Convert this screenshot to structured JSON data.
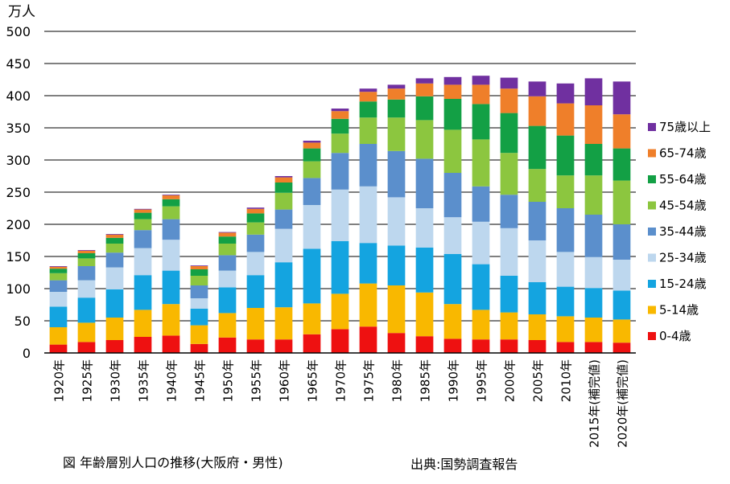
{
  "chart_data": {
    "type": "bar",
    "stacked": true,
    "unit_label": "万人",
    "ylim": [
      0,
      500
    ],
    "yticks": [
      0,
      50,
      100,
      150,
      200,
      250,
      300,
      350,
      400,
      450,
      500
    ],
    "grid": true,
    "legend_position": "right",
    "categories": [
      "1920年",
      "1925年",
      "1930年",
      "1935年",
      "1940年",
      "1945年",
      "1950年",
      "1955年",
      "1960年",
      "1965年",
      "1970年",
      "1975年",
      "1980年",
      "1985年",
      "1990年",
      "1995年",
      "2000年",
      "2005年",
      "2010年",
      "2015年(補完値)",
      "2020年(補完値)"
    ],
    "series": [
      {
        "name": "0-4歳",
        "color": "#ee1111",
        "values": [
          13,
          17,
          20,
          25,
          27,
          14,
          24,
          21,
          21,
          29,
          37,
          41,
          31,
          26,
          22,
          21,
          21,
          20,
          17,
          17,
          16
        ]
      },
      {
        "name": "5-14歳",
        "color": "#f9b800",
        "values": [
          27,
          30,
          35,
          42,
          49,
          29,
          38,
          49,
          50,
          48,
          55,
          67,
          74,
          68,
          54,
          46,
          42,
          40,
          40,
          38,
          36
        ]
      },
      {
        "name": "15-24歳",
        "color": "#14a4e0",
        "values": [
          32,
          39,
          44,
          54,
          52,
          26,
          40,
          51,
          70,
          85,
          82,
          63,
          62,
          70,
          78,
          71,
          57,
          50,
          46,
          46,
          45
        ]
      },
      {
        "name": "25-34歳",
        "color": "#bdd7ee",
        "values": [
          23,
          27,
          34,
          42,
          48,
          16,
          26,
          36,
          52,
          68,
          80,
          88,
          75,
          61,
          57,
          66,
          74,
          65,
          54,
          48,
          48
        ]
      },
      {
        "name": "35-44歳",
        "color": "#5b8fcc",
        "values": [
          18,
          22,
          23,
          28,
          32,
          20,
          24,
          27,
          30,
          42,
          57,
          66,
          72,
          77,
          69,
          55,
          52,
          60,
          68,
          66,
          55
        ]
      },
      {
        "name": "45-54歳",
        "color": "#8cc63f",
        "values": [
          11,
          12,
          14,
          17,
          20,
          15,
          18,
          19,
          26,
          26,
          30,
          41,
          52,
          60,
          67,
          73,
          65,
          51,
          51,
          61,
          68
        ]
      },
      {
        "name": "55-64歳",
        "color": "#13a045",
        "values": [
          7,
          8,
          9,
          10,
          11,
          10,
          11,
          14,
          16,
          20,
          23,
          25,
          28,
          37,
          48,
          55,
          62,
          67,
          62,
          49,
          50
        ]
      },
      {
        "name": "65-74歳",
        "color": "#ef7f2a",
        "values": [
          3,
          4,
          5,
          5,
          6,
          5,
          6,
          7,
          8,
          9,
          12,
          15,
          17,
          20,
          22,
          30,
          38,
          46,
          50,
          60,
          53
        ]
      },
      {
        "name": "75歳以上",
        "color": "#7030a0",
        "values": [
          1,
          1,
          1,
          1,
          1,
          1,
          1,
          2,
          2,
          3,
          4,
          5,
          6,
          8,
          12,
          14,
          17,
          23,
          31,
          42,
          51
        ]
      }
    ]
  },
  "caption": {
    "title": "図  年齢層別人口の推移(大阪府・男性)",
    "source": "出典:国勢調査報告"
  }
}
